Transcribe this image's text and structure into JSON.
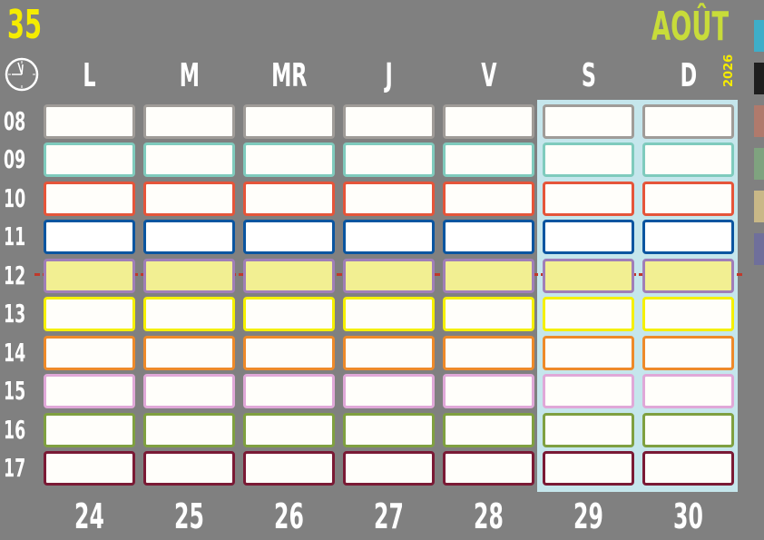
{
  "header": {
    "week_number": "35",
    "month": "AOÛT",
    "year": "2026",
    "clock_icon": "clock-icon"
  },
  "days": [
    {
      "label": "L",
      "date": "24",
      "weekend": false
    },
    {
      "label": "M",
      "date": "25",
      "weekend": false
    },
    {
      "label": "MR",
      "date": "26",
      "weekend": false
    },
    {
      "label": "J",
      "date": "27",
      "weekend": false
    },
    {
      "label": "V",
      "date": "28",
      "weekend": false
    },
    {
      "label": "S",
      "date": "29",
      "weekend": true
    },
    {
      "label": "D",
      "date": "30",
      "weekend": true
    }
  ],
  "hours": [
    {
      "label": "08",
      "border": "#a09c98",
      "fill": "#fffefa"
    },
    {
      "label": "09",
      "border": "#7fcbbd",
      "fill": "#fffefa"
    },
    {
      "label": "10",
      "border": "#e5553a",
      "fill": "#fffefa"
    },
    {
      "label": "11",
      "border": "#0a55a0",
      "fill": "#ffffff"
    },
    {
      "label": "12",
      "border": "#a07fb8",
      "fill": "#f2ef92"
    },
    {
      "label": "13",
      "border": "#f5f000",
      "fill": "#fffefa"
    },
    {
      "label": "14",
      "border": "#ee8a2a",
      "fill": "#fffefa"
    },
    {
      "label": "15",
      "border": "#e0a8d8",
      "fill": "#fffefa"
    },
    {
      "label": "16",
      "border": "#7fa040",
      "fill": "#fffefa"
    },
    {
      "label": "17",
      "border": "#7a1a35",
      "fill": "#fffefa"
    }
  ],
  "legend_colors": [
    "#3eaec9",
    "#1e1e1e",
    "#b07a6c",
    "#7fa37f",
    "#c9b887",
    "#6f6f9b"
  ],
  "colors": {
    "background": "#808080",
    "weekend_highlight": "#c5e6ec",
    "noon_line": "#c0392b",
    "week_number": "#f5ec00",
    "month": "#c8dc3a"
  }
}
